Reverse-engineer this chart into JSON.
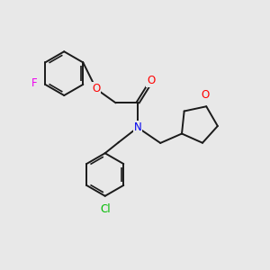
{
  "background_color": "#e8e8e8",
  "bond_color": "#1a1a1a",
  "atom_colors": {
    "O": "#ff0000",
    "N": "#0000ee",
    "F": "#ee00ee",
    "Cl": "#00bb00",
    "C": "#1a1a1a"
  },
  "font_size": 8.5,
  "figsize": [
    3.0,
    3.0
  ],
  "dpi": 100,
  "lw": 1.4
}
